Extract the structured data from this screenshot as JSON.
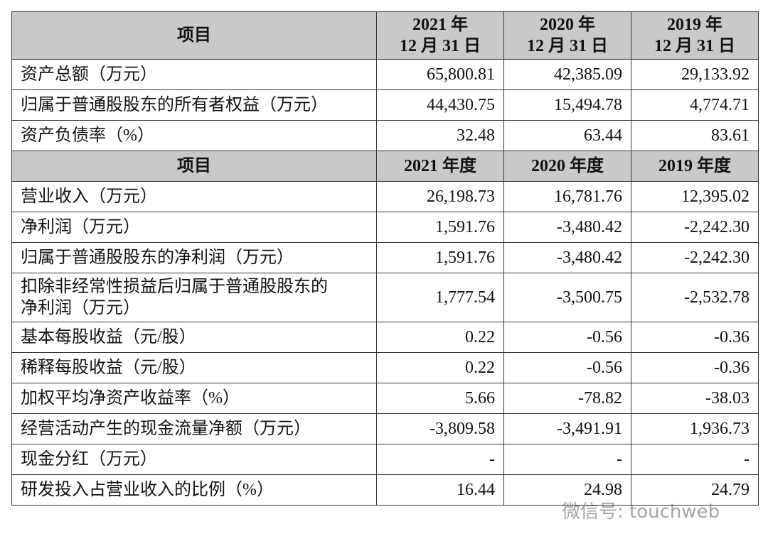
{
  "table1": {
    "header": [
      "项目",
      "2021 年\n12 月 31 日",
      "2020 年\n12 月 31 日",
      "2019 年\n12 月 31 日"
    ],
    "rows": [
      [
        "资产总额（万元）",
        "65,800.81",
        "42,385.09",
        "29,133.92"
      ],
      [
        "归属于普通股股东的所有者权益（万元）",
        "44,430.75",
        "15,494.78",
        "4,774.71"
      ],
      [
        "资产负债率（%）",
        "32.48",
        "63.44",
        "83.61"
      ]
    ]
  },
  "table2": {
    "header": [
      "项目",
      "2021 年度",
      "2020 年度",
      "2019 年度"
    ],
    "rows": [
      [
        "营业收入（万元）",
        "26,198.73",
        "16,781.76",
        "12,395.02"
      ],
      [
        "净利润（万元）",
        "1,591.76",
        "-3,480.42",
        "-2,242.30"
      ],
      [
        "归属于普通股股东的净利润（万元）",
        "1,591.76",
        "-3,480.42",
        "-2,242.30"
      ],
      [
        "扣除非经常性损益后归属于普通股股东的\n净利润（万元）",
        "1,777.54",
        "-3,500.75",
        "-2,532.78"
      ],
      [
        "基本每股收益（元/股）",
        "0.22",
        "-0.56",
        "-0.36"
      ],
      [
        "稀释每股收益（元/股）",
        "0.22",
        "-0.56",
        "-0.36"
      ],
      [
        "加权平均净资产收益率（%）",
        "5.66",
        "-78.82",
        "-38.03"
      ],
      [
        "经营活动产生的现金流量净额（万元）",
        "-3,809.58",
        "-3,491.91",
        "1,936.73"
      ],
      [
        "现金分红（万元）",
        "-",
        "-",
        "-"
      ],
      [
        "研发投入占营业收入的比例（%）",
        "16.44",
        "24.98",
        "24.79"
      ]
    ]
  },
  "watermark": "微信号: touchweb"
}
